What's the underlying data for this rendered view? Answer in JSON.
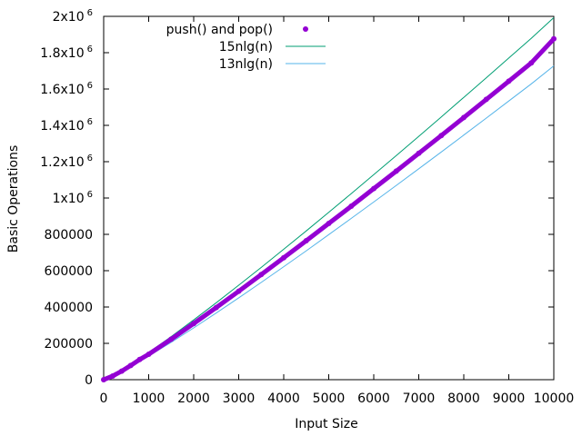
{
  "chart_data": {
    "type": "scatter",
    "xlabel": "Input Size",
    "ylabel": "Basic Operations",
    "xlim": [
      0,
      10000
    ],
    "ylim": [
      0,
      2000000
    ],
    "x_ticks": [
      0,
      1000,
      2000,
      3000,
      4000,
      5000,
      6000,
      7000,
      8000,
      9000,
      10000
    ],
    "y_ticks": [
      {
        "value": 0,
        "label": "0"
      },
      {
        "value": 200000,
        "label": "200000"
      },
      {
        "value": 400000,
        "label": "400000"
      },
      {
        "value": 600000,
        "label": "600000"
      },
      {
        "value": 800000,
        "label": "800000"
      },
      {
        "value": 1000000,
        "label": "1x10",
        "exp": "6"
      },
      {
        "value": 1200000,
        "label": "1.2x10",
        "exp": "6"
      },
      {
        "value": 1400000,
        "label": "1.4x10",
        "exp": "6"
      },
      {
        "value": 1600000,
        "label": "1.6x10",
        "exp": "6"
      },
      {
        "value": 1800000,
        "label": "1.8x10",
        "exp": "6"
      },
      {
        "value": 2000000,
        "label": "2x10",
        "exp": "6"
      }
    ],
    "grid": false,
    "legend_position": "top-left",
    "series": [
      {
        "name": "push() and pop()",
        "kind": "points",
        "color": "#9400d3",
        "x": [
          0,
          200,
          400,
          600,
          800,
          1000,
          1500,
          2000,
          2500,
          3000,
          3500,
          4000,
          4500,
          5000,
          5500,
          6000,
          6500,
          7000,
          7500,
          8000,
          8500,
          9000,
          9500,
          10000
        ],
        "y": [
          0,
          20000,
          47000,
          78000,
          111000,
          140000,
          223000,
          309000,
          397000,
          487000,
          579000,
          671000,
          765000,
          860000,
          955000,
          1052000,
          1148000,
          1246000,
          1344000,
          1443000,
          1543000,
          1643000,
          1744000,
          1876000
        ]
      },
      {
        "name": "15nlg(n)",
        "kind": "line",
        "color": "#009e73",
        "x": [
          0,
          250,
          500,
          750,
          1000,
          1500,
          2000,
          2500,
          3000,
          3500,
          4000,
          4500,
          5000,
          5500,
          6000,
          6500,
          7000,
          7500,
          8000,
          8500,
          9000,
          9500,
          10000
        ],
        "y": [
          0,
          29884,
          67262,
          107650,
          149487,
          237441,
          328939,
          423290,
          519787,
          618082,
          717836,
          818874,
          921102,
          1024374,
          1128584,
          1233766,
          1339699,
          1446398,
          1553757,
          1661753,
          1770265,
          1879300,
          1993157
        ]
      },
      {
        "name": "13nlg(n)",
        "kind": "line",
        "color": "#56b4e9",
        "x": [
          0,
          250,
          500,
          750,
          1000,
          1500,
          2000,
          2500,
          3000,
          3500,
          4000,
          4500,
          5000,
          5500,
          6000,
          6500,
          7000,
          7500,
          8000,
          8500,
          9000,
          9500,
          10000
        ],
        "y": [
          0,
          25899,
          58294,
          93297,
          129556,
          205782,
          285081,
          366851,
          450482,
          535671,
          622125,
          709691,
          798288,
          887791,
          978106,
          1069264,
          1161073,
          1253544,
          1346590,
          1440186,
          1534229,
          1628727,
          1727403
        ]
      }
    ]
  }
}
